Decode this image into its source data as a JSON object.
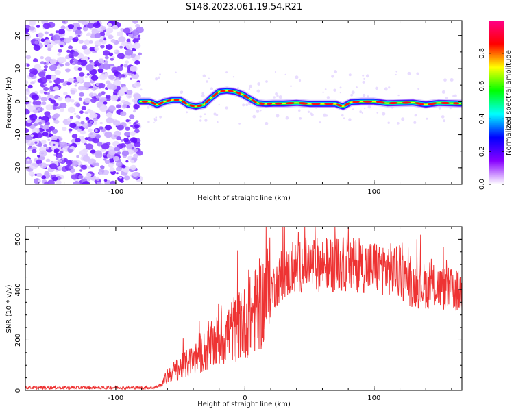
{
  "title": "S148.2023.061.19.54.R21",
  "chart_data": [
    {
      "type": "heatmap",
      "xlabel": "Height of straight line (km)",
      "ylabel": "Frequency (Hz)",
      "xlim": [
        -170,
        168
      ],
      "ylim": [
        -25,
        24.5
      ],
      "xticks": [
        -100,
        100
      ],
      "yticks": [
        -20,
        -10,
        0,
        10,
        20
      ],
      "colorbar": {
        "label": "Normalized spectral amplitude",
        "range": [
          0,
          1
        ],
        "ticks": [
          0.0,
          0.2,
          0.4,
          0.6,
          0.8
        ],
        "colors": [
          "#ffffff",
          "#8800ff",
          "#0000ff",
          "#00ffff",
          "#00ff00",
          "#ffff00",
          "#ff0000",
          "#ff0088"
        ]
      },
      "noise_region": {
        "x_from": -170,
        "x_to": -81
      },
      "signal_trace": {
        "x": [
          -81,
          -74,
          -68,
          -62,
          -56,
          -50,
          -44,
          -38,
          -32,
          -26,
          -20,
          -14,
          -8,
          -2,
          4,
          10,
          16,
          22,
          30,
          40,
          50,
          60,
          70,
          76,
          82,
          90,
          100,
          110,
          120,
          130,
          140,
          150,
          160,
          167
        ],
        "freq": [
          0,
          0,
          -1,
          0,
          0.5,
          0.5,
          -1,
          -1.5,
          -1,
          1.2,
          3,
          3.3,
          3,
          2.2,
          0.8,
          -0.5,
          -0.7,
          -0.6,
          -0.6,
          -0.4,
          -0.7,
          -0.7,
          -0.7,
          -1.5,
          -0.2,
          0,
          0,
          -0.5,
          -0.4,
          -0.3,
          -0.9,
          -0.4,
          -0.5,
          -0.6
        ]
      }
    },
    {
      "type": "line",
      "xlabel": "Height of straight line (km)",
      "ylabel": "SNR (10 * v/v)",
      "xlim": [
        -170,
        168
      ],
      "ylim": [
        0,
        650
      ],
      "xticks": [
        -100,
        0,
        100
      ],
      "yticks": [
        0,
        200,
        400,
        600
      ],
      "color": "#ee3333",
      "trend": {
        "x": [
          -170,
          -70,
          -64,
          -60,
          -50,
          -40,
          -30,
          -20,
          -10,
          0,
          10,
          20,
          30,
          45,
          60,
          80,
          100,
          115,
          130,
          150,
          168
        ],
        "y": [
          11,
          11,
          25,
          60,
          90,
          120,
          160,
          200,
          240,
          270,
          330,
          400,
          460,
          500,
          500,
          500,
          490,
          480,
          420,
          410,
          390
        ]
      }
    }
  ]
}
